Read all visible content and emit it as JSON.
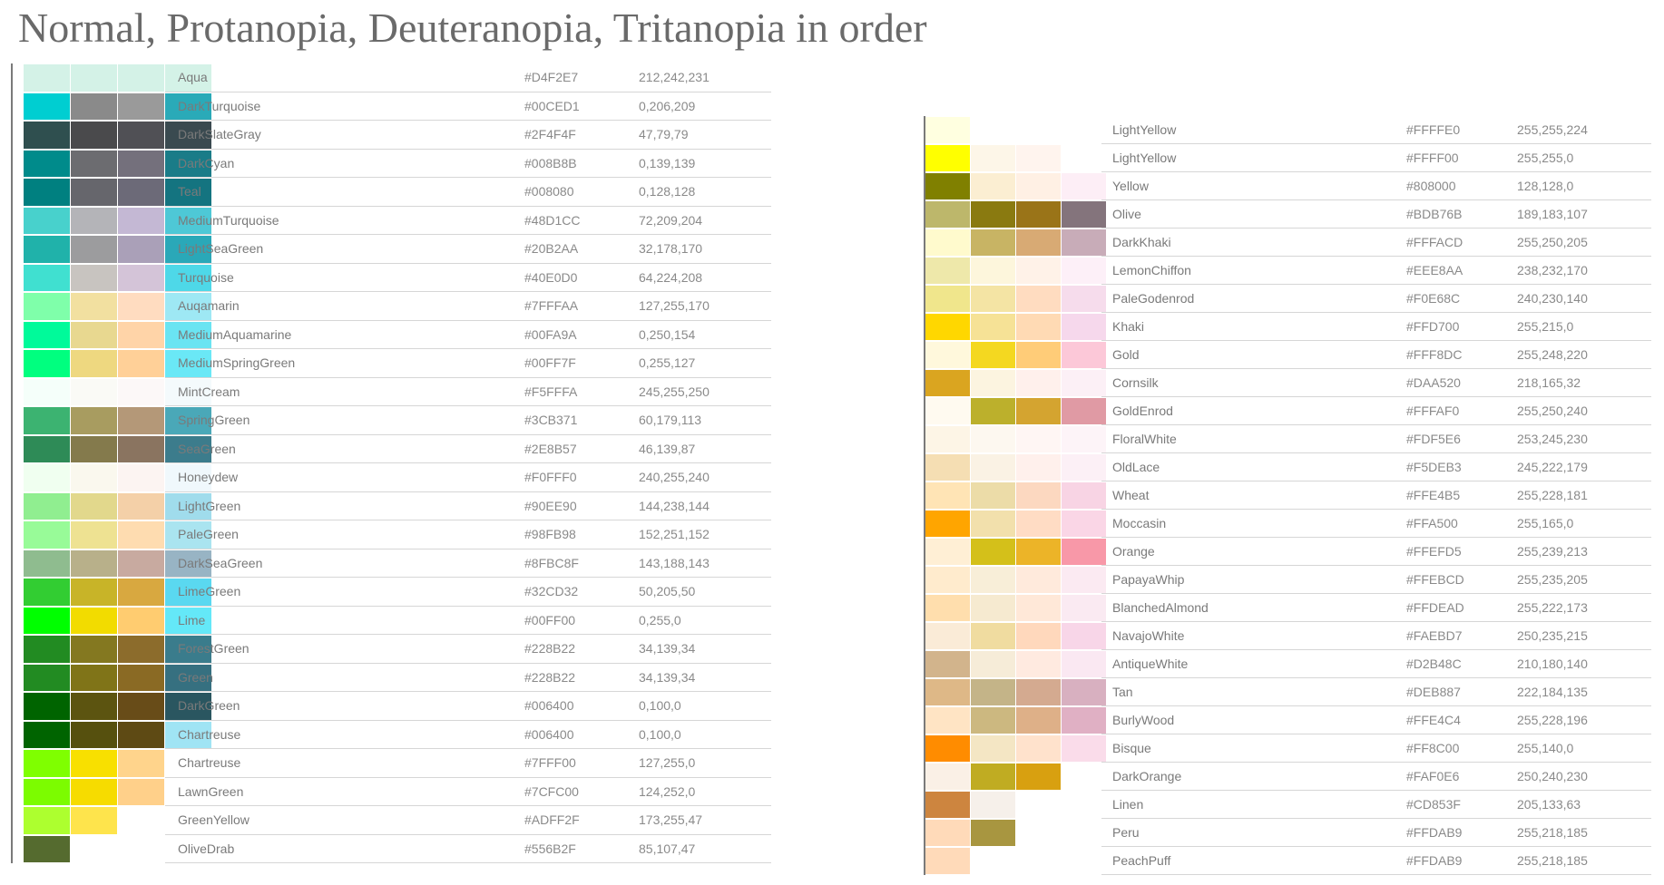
{
  "title": "Normal, Protanopia, Deuteranopia, Tritanopia in order",
  "left_table": {
    "rows": [
      {
        "name": "Aqua",
        "hex": "#D4F2E7",
        "rgb": "212,242,231",
        "colors": [
          "#d4f2e7",
          "#d4f2e7",
          "#d4f2e7",
          "#d4f2e7"
        ]
      },
      {
        "name": "DarkTurquoise",
        "hex": "#00CED1",
        "rgb": "0,206,209",
        "colors": [
          "#00ced1",
          "#8a8a8a",
          "#9a9a9a",
          "#2aaab8"
        ]
      },
      {
        "name": "DarkSlateGray",
        "hex": "#2F4F4F",
        "rgb": "47,79,79",
        "colors": [
          "#2f4f4f",
          "#4a4a4c",
          "#505055",
          "#3a4a50"
        ]
      },
      {
        "name": "DarkCyan",
        "hex": "#008B8B",
        "rgb": "0,139,139",
        "colors": [
          "#008b8b",
          "#6c6c70",
          "#74707c",
          "#1a7c88"
        ]
      },
      {
        "name": "Teal",
        "hex": "#008080",
        "rgb": "0,128,128",
        "colors": [
          "#008080",
          "#66666c",
          "#6c6a78",
          "#147480"
        ]
      },
      {
        "name": "MediumTurquoise",
        "hex": "#48D1CC",
        "rgb": "72,209,204",
        "colors": [
          "#48d1cc",
          "#b4b4b8",
          "#c4b8d4",
          "#4ec8d6"
        ]
      },
      {
        "name": "LightSeaGreen",
        "hex": "#20B2AA",
        "rgb": "32,178,170",
        "colors": [
          "#20b2aa",
          "#9c9c9e",
          "#aaa0b8",
          "#2aa8b8"
        ]
      },
      {
        "name": "Turquoise",
        "hex": "#40E0D0",
        "rgb": "64,224,208",
        "colors": [
          "#40e0d0",
          "#c8c4c0",
          "#d4c4d8",
          "#4ed8e8"
        ]
      },
      {
        "name": "Auqamarin",
        "hex": "#7FFFAA",
        "rgb": "127,255,170",
        "colors": [
          "#7fffaa",
          "#f2e0a0",
          "#ffdcc0",
          "#9ee8f4"
        ]
      },
      {
        "name": "MediumAquamarine",
        "hex": "#00FA9A",
        "rgb": "0,250,154",
        "colors": [
          "#00fa9a",
          "#e8d890",
          "#ffd4a8",
          "#6ae4f2"
        ]
      },
      {
        "name": "MediumSpringGreen",
        "hex": "#00FF7F",
        "rgb": "0,255,127",
        "colors": [
          "#00ff7f",
          "#eed880",
          "#ffd098",
          "#6ae8f6"
        ]
      },
      {
        "name": "MintCream",
        "hex": "#F5FFFA",
        "rgb": "245,255,250",
        "colors": [
          "#f5fffa",
          "#fafaf6",
          "#fcf8f8",
          "#f4fafc"
        ]
      },
      {
        "name": "SpringGreen",
        "hex": "#3CB371",
        "rgb": "60,179,113",
        "colors": [
          "#3cb371",
          "#a89c60",
          "#b49878",
          "#4aa8b8"
        ]
      },
      {
        "name": "SeaGreen",
        "hex": "#2E8B57",
        "rgb": "46,139,87",
        "colors": [
          "#2e8b57",
          "#847a4c",
          "#8a7460",
          "#3c7c8c"
        ]
      },
      {
        "name": "Honeydew",
        "hex": "#F0FFF0",
        "rgb": "240,255,240",
        "colors": [
          "#f0fff0",
          "#faf8ee",
          "#fcf4f2",
          "#f0f8fc"
        ]
      },
      {
        "name": "LightGreen",
        "hex": "#90EE90",
        "rgb": "144,238,144",
        "colors": [
          "#90ee90",
          "#e2d88c",
          "#f4d0a8",
          "#a0dcec"
        ]
      },
      {
        "name": "PaleGreen",
        "hex": "#98FB98",
        "rgb": "152,251,152",
        "colors": [
          "#98fb98",
          "#eee292",
          "#fedcb0",
          "#aae4f0"
        ]
      },
      {
        "name": "DarkSeaGreen",
        "hex": "#8FBC8F",
        "rgb": "143,188,143",
        "colors": [
          "#8fbc8f",
          "#b8b08a",
          "#c8aaa0",
          "#98b4c4"
        ]
      },
      {
        "name": "LimeGreen",
        "hex": "#32CD32",
        "rgb": "50,205,50",
        "colors": [
          "#32cd32",
          "#c8b428",
          "#d8a840",
          "#5ad8f0"
        ]
      },
      {
        "name": "Lime",
        "hex": "#00FF00",
        "rgb": "0,255,0",
        "colors": [
          "#00ff00",
          "#f2dc00",
          "#ffcc70",
          "#64e8f8"
        ]
      },
      {
        "name": "ForestGreen",
        "hex": "#228B22",
        "rgb": "34,139,34",
        "colors": [
          "#228b22",
          "#847820",
          "#8c6c2c",
          "#3a7c8c"
        ]
      },
      {
        "name": "Green",
        "hex": "#228B22",
        "rgb": "34,139,34",
        "colors": [
          "#228b22",
          "#807418",
          "#8a6a24",
          "#367080"
        ]
      },
      {
        "name": "DarkGreen",
        "hex": "#006400",
        "rgb": "0,100,0",
        "colors": [
          "#006400",
          "#5c5410",
          "#684c18",
          "#2a5660"
        ]
      },
      {
        "name": "Chartreuse",
        "hex": "#006400",
        "rgb": "0,100,0",
        "colors": [
          "#006400",
          "#56500e",
          "#5e4a14",
          "#a0e4f4"
        ]
      },
      {
        "name": "Chartreuse",
        "hex": "#7FFF00",
        "rgb": "127,255,0",
        "colors": [
          "#7fff00",
          "#f8e000",
          "#ffd48c",
          "#ffffff"
        ]
      },
      {
        "name": "LawnGreen",
        "hex": "#7CFC00",
        "rgb": "124,252,0",
        "colors": [
          "#7cfc00",
          "#f6dc00",
          "#ffd08a",
          "#ffffff"
        ]
      },
      {
        "name": "GreenYellow",
        "hex": "#ADFF2F",
        "rgb": "173,255,47",
        "colors": [
          "#adff2f",
          "#fee44c",
          "#ffffff",
          "#ffffff"
        ]
      },
      {
        "name": "OliveDrab",
        "hex": "#556B2F",
        "rgb": "85,107,47",
        "colors": [
          "#556b2f",
          "#ffffff",
          "#ffffff",
          "#ffffff"
        ]
      }
    ]
  },
  "right_table": {
    "rows": [
      {
        "name": "LightYellow",
        "hex": "#FFFFE0",
        "rgb": "255,255,224",
        "colors": [
          "#ffffe0",
          "#ffffff",
          "#ffffff",
          "#ffffff"
        ]
      },
      {
        "name": "LightYellow",
        "hex": "#FFFF00",
        "rgb": "255,255,0",
        "colors": [
          "#ffff00",
          "#fdf6e8",
          "#fff4ee",
          "#ffffff"
        ]
      },
      {
        "name": "Yellow",
        "hex": "#808000",
        "rgb": "128,128,0",
        "colors": [
          "#808000",
          "#fbeed2",
          "#fff0e4",
          "#fdeef6"
        ]
      },
      {
        "name": "Olive",
        "hex": "#BDB76B",
        "rgb": "189,183,107",
        "colors": [
          "#bdb76b",
          "#8a7a10",
          "#9a7418",
          "#84747c"
        ]
      },
      {
        "name": "DarkKhaki",
        "hex": "#FFFACD",
        "rgb": "255,250,205",
        "colors": [
          "#fffacd",
          "#c8b464",
          "#d8aa74",
          "#c8acb8"
        ]
      },
      {
        "name": "LemonChiffon",
        "hex": "#EEE8AA",
        "rgb": "238,232,170",
        "colors": [
          "#eee8aa",
          "#fdf6dc",
          "#fff2e8",
          "#fdf0f8"
        ]
      },
      {
        "name": "PaleGodenrod",
        "hex": "#F0E68C",
        "rgb": "240,230,140",
        "colors": [
          "#f0e68c",
          "#f4e4a4",
          "#ffdcc0",
          "#f6dcec"
        ]
      },
      {
        "name": "Khaki",
        "hex": "#FFD700",
        "rgb": "255,215,0",
        "colors": [
          "#ffd700",
          "#f6e296",
          "#ffdab4",
          "#f6d8ec"
        ]
      },
      {
        "name": "Gold",
        "hex": "#FFF8DC",
        "rgb": "255,248,220",
        "colors": [
          "#fff8dc",
          "#f4d820",
          "#ffcc78",
          "#fcc8d8"
        ]
      },
      {
        "name": "Cornsilk",
        "hex": "#DAA520",
        "rgb": "218,165,32",
        "colors": [
          "#daa520",
          "#fcf4e0",
          "#fff0ec",
          "#fcf0f6"
        ]
      },
      {
        "name": "GoldEnrod",
        "hex": "#FFFAF0",
        "rgb": "255,250,240",
        "colors": [
          "#fffaf0",
          "#bcb02c",
          "#d4a430",
          "#e09aa4"
        ]
      },
      {
        "name": "FloralWhite",
        "hex": "#FDF5E6",
        "rgb": "253,245,230",
        "colors": [
          "#fdf5e6",
          "#fdf8f0",
          "#fff6f4",
          "#fdf4f8"
        ]
      },
      {
        "name": "OldLace",
        "hex": "#F5DEB3",
        "rgb": "245,222,179",
        "colors": [
          "#f5deb3",
          "#faf2e4",
          "#fff0ec",
          "#fcf0f6"
        ]
      },
      {
        "name": "Wheat",
        "hex": "#FFE4B5",
        "rgb": "255,228,181",
        "colors": [
          "#ffe4b5",
          "#ecdca8",
          "#fcd8c0",
          "#f8d4e4"
        ]
      },
      {
        "name": "Moccasin",
        "hex": "#FFA500",
        "rgb": "255,165,0",
        "colors": [
          "#ffa500",
          "#f2e0ac",
          "#ffdcc4",
          "#fad6e6"
        ]
      },
      {
        "name": "Orange",
        "hex": "#FFEFD5",
        "rgb": "255,239,213",
        "colors": [
          "#ffefd5",
          "#d4c01a",
          "#ecb428",
          "#f898a8"
        ]
      },
      {
        "name": "PapayaWhip",
        "hex": "#FFEBCD",
        "rgb": "255,235,205",
        "colors": [
          "#ffebcd",
          "#f8eed8",
          "#ffeadc",
          "#fbeaf2"
        ]
      },
      {
        "name": "BlanchedAlmond",
        "hex": "#FFDEAD",
        "rgb": "255,222,173",
        "colors": [
          "#ffdead",
          "#f6ead0",
          "#ffe8d8",
          "#faeaf2"
        ]
      },
      {
        "name": "NavajoWhite",
        "hex": "#FAEBD7",
        "rgb": "250,235,215",
        "colors": [
          "#faebd7",
          "#f0dca0",
          "#ffd8bc",
          "#f8d6e8"
        ]
      },
      {
        "name": "AntiqueWhite",
        "hex": "#D2B48C",
        "rgb": "210,180,140",
        "colors": [
          "#d2b48c",
          "#f6ecd8",
          "#ffeae0",
          "#fae8f2"
        ]
      },
      {
        "name": "Tan",
        "hex": "#DEB887",
        "rgb": "222,184,135",
        "colors": [
          "#deb887",
          "#c4b488",
          "#d4aa90",
          "#d8b0c0"
        ]
      },
      {
        "name": "BurlyWood",
        "hex": "#FFE4C4",
        "rgb": "255,228,196",
        "colors": [
          "#ffe4c4",
          "#ccb880",
          "#deb088",
          "#e0b0c4"
        ]
      },
      {
        "name": "Bisque",
        "hex": "#FF8C00",
        "rgb": "255,140,0",
        "colors": [
          "#ff8c00",
          "#f4e6c4",
          "#ffe2cc",
          "#fadcea"
        ]
      },
      {
        "name": "DarkOrange",
        "hex": "#FAF0E6",
        "rgb": "250,240,230",
        "colors": [
          "#faf0e6",
          "#c0ac22",
          "#d8a010",
          "#ffffff"
        ]
      },
      {
        "name": "Linen",
        "hex": "#CD853F",
        "rgb": "205,133,63",
        "colors": [
          "#cd853f",
          "#f6f0ea",
          "#ffffff",
          "#ffffff"
        ]
      },
      {
        "name": "Peru",
        "hex": "#FFDAB9",
        "rgb": "255,218,185",
        "colors": [
          "#ffdab9",
          "#a89640",
          "#ffffff",
          "#ffffff"
        ]
      },
      {
        "name": "PeachPuff",
        "hex": "#FFDAB9",
        "rgb": "255,218,185",
        "colors": [
          "#ffdab9",
          "#ffffff",
          "#ffffff",
          "#ffffff"
        ]
      }
    ]
  }
}
